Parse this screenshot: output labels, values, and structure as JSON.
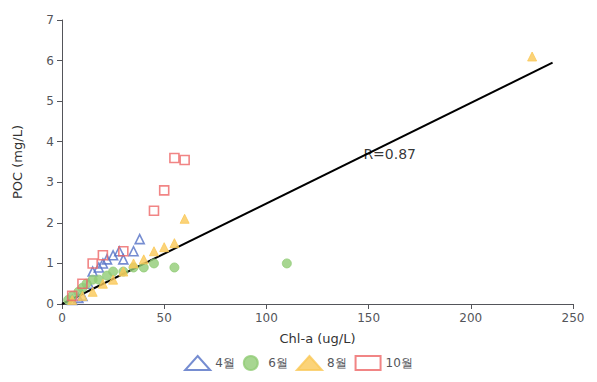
{
  "chart_data": {
    "type": "scatter",
    "xlabel": "Chl-a (ug/L)",
    "ylabel": "POC (mg/L)",
    "xlim": [
      0,
      250
    ],
    "ylim": [
      0.0,
      7.0
    ],
    "xticks": [
      0,
      50,
      100,
      150,
      200,
      250
    ],
    "yticks": [
      0,
      1,
      2,
      3,
      4,
      5,
      6,
      7
    ],
    "grid": false,
    "legend": "bottom",
    "series": [
      {
        "type": "line",
        "color": "#000000",
        "x": [
          0,
          240
        ],
        "values": [
          0.0,
          5.95
        ]
      },
      {
        "name": "4월",
        "marker": "triangle-open",
        "x": [
          5,
          8,
          10,
          13,
          15,
          18,
          20,
          22,
          25,
          28,
          30,
          35,
          38
        ],
        "values": [
          0.1,
          0.15,
          0.2,
          0.5,
          0.8,
          0.9,
          1.0,
          1.1,
          1.2,
          1.3,
          1.1,
          1.3,
          1.6
        ]
      },
      {
        "name": "6월",
        "marker": "circle",
        "x": [
          3,
          5,
          8,
          10,
          12,
          15,
          18,
          22,
          25,
          30,
          35,
          40,
          45,
          55,
          110
        ],
        "values": [
          0.1,
          0.2,
          0.3,
          0.4,
          0.5,
          0.6,
          0.6,
          0.7,
          0.8,
          0.8,
          0.9,
          0.9,
          1.0,
          0.9,
          1.0
        ]
      },
      {
        "name": "8월",
        "marker": "triangle",
        "x": [
          5,
          10,
          15,
          20,
          25,
          30,
          35,
          40,
          45,
          50,
          55,
          60,
          230
        ],
        "values": [
          0.1,
          0.2,
          0.3,
          0.5,
          0.6,
          0.8,
          1.0,
          1.1,
          1.3,
          1.4,
          1.5,
          2.1,
          6.1
        ]
      },
      {
        "name": "10월",
        "marker": "square-open",
        "x": [
          5,
          10,
          15,
          20,
          30,
          45,
          50,
          55,
          60
        ],
        "values": [
          0.2,
          0.5,
          1.0,
          1.2,
          1.3,
          2.3,
          2.8,
          3.6,
          3.55
        ]
      }
    ],
    "annotations": [
      {
        "text": "R=0.87",
        "x": 145,
        "y": 3.7
      }
    ]
  }
}
